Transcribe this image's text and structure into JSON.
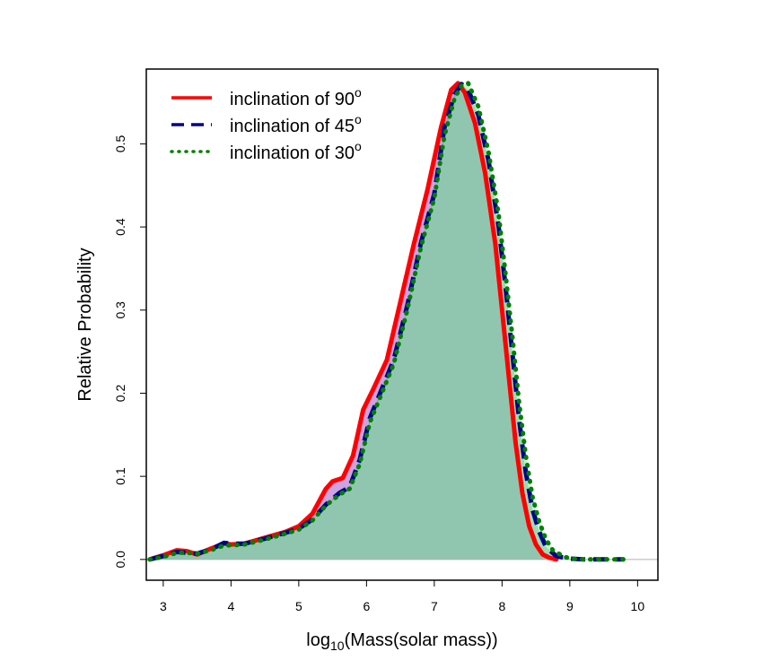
{
  "chart_data": {
    "type": "area",
    "xlabel": "log10(Mass(solar mass))",
    "xlabel_parts": {
      "main": "log",
      "sub": "10",
      "rest": "(Mass(solar mass))"
    },
    "ylabel": "Relative Probability",
    "xlim": [
      2.75,
      10.3
    ],
    "ylim": [
      -0.025,
      0.59
    ],
    "x_ticks": [
      3,
      4,
      5,
      6,
      7,
      8,
      9,
      10
    ],
    "y_ticks": [
      0.0,
      0.1,
      0.2,
      0.3,
      0.4,
      0.5
    ],
    "x_tick_labels": [
      "3",
      "4",
      "5",
      "6",
      "7",
      "8",
      "9",
      "10"
    ],
    "y_tick_labels": [
      "0.0",
      "0.1",
      "0.2",
      "0.3",
      "0.4",
      "0.5"
    ],
    "legend_placement": "top-left",
    "series": [
      {
        "name": "inclination of 90",
        "name_parts": {
          "text": "inclination of 90",
          "sup": "o"
        },
        "line_style": "solid",
        "color": "#ff0000",
        "fill": "#a855c8",
        "x": [
          2.8,
          3.0,
          3.2,
          3.35,
          3.5,
          3.7,
          3.9,
          4.0,
          4.2,
          4.5,
          4.8,
          5.0,
          5.2,
          5.4,
          5.5,
          5.65,
          5.8,
          5.95,
          6.1,
          6.3,
          6.5,
          6.7,
          6.9,
          7.1,
          7.25,
          7.35,
          7.45,
          7.6,
          7.75,
          7.9,
          8.0,
          8.1,
          8.2,
          8.3,
          8.4,
          8.5,
          8.6,
          8.7,
          8.8
        ],
        "y": [
          0.0,
          0.005,
          0.011,
          0.01,
          0.006,
          0.013,
          0.019,
          0.018,
          0.019,
          0.026,
          0.033,
          0.04,
          0.055,
          0.085,
          0.094,
          0.098,
          0.125,
          0.18,
          0.205,
          0.24,
          0.31,
          0.38,
          0.445,
          0.52,
          0.565,
          0.573,
          0.562,
          0.525,
          0.465,
          0.38,
          0.3,
          0.22,
          0.14,
          0.08,
          0.04,
          0.018,
          0.006,
          0.002,
          0.0
        ]
      },
      {
        "name": "inclination of 45",
        "name_parts": {
          "text": "inclination of 45",
          "sup": "o"
        },
        "line_style": "dashed",
        "color": "#00008b",
        "fill": "#5f9cc0",
        "x": [
          2.8,
          3.0,
          3.2,
          3.35,
          3.5,
          3.7,
          3.9,
          4.0,
          4.2,
          4.5,
          4.8,
          5.0,
          5.2,
          5.4,
          5.6,
          5.75,
          5.9,
          6.05,
          6.2,
          6.4,
          6.6,
          6.8,
          7.0,
          7.15,
          7.3,
          7.4,
          7.5,
          7.65,
          7.8,
          7.95,
          8.05,
          8.15,
          8.25,
          8.35,
          8.45,
          8.55,
          8.65,
          8.8,
          9.0,
          9.2,
          9.5,
          9.8
        ],
        "y": [
          0.0,
          0.004,
          0.009,
          0.008,
          0.007,
          0.012,
          0.02,
          0.019,
          0.019,
          0.025,
          0.032,
          0.037,
          0.048,
          0.066,
          0.08,
          0.087,
          0.12,
          0.17,
          0.2,
          0.24,
          0.305,
          0.38,
          0.44,
          0.52,
          0.56,
          0.572,
          0.565,
          0.535,
          0.48,
          0.4,
          0.33,
          0.25,
          0.17,
          0.105,
          0.06,
          0.033,
          0.015,
          0.004,
          0.001,
          0.0,
          0.0,
          0.0
        ]
      },
      {
        "name": "inclination of 30",
        "name_parts": {
          "text": "inclination of 30",
          "sup": "o"
        },
        "line_style": "dotted",
        "color": "#008000",
        "fill": "#90ee90",
        "x": [
          2.8,
          3.0,
          3.2,
          3.35,
          3.5,
          3.7,
          3.9,
          4.0,
          4.2,
          4.5,
          4.8,
          5.0,
          5.2,
          5.4,
          5.6,
          5.75,
          5.9,
          6.05,
          6.2,
          6.4,
          6.6,
          6.8,
          7.0,
          7.15,
          7.3,
          7.4,
          7.5,
          7.65,
          7.8,
          7.95,
          8.05,
          8.15,
          8.25,
          8.35,
          8.45,
          8.55,
          8.65,
          8.75,
          8.9,
          9.0,
          9.2,
          9.5,
          9.8
        ],
        "y": [
          0.0,
          0.003,
          0.008,
          0.008,
          0.007,
          0.011,
          0.017,
          0.017,
          0.018,
          0.024,
          0.031,
          0.036,
          0.047,
          0.065,
          0.078,
          0.085,
          0.115,
          0.165,
          0.195,
          0.235,
          0.3,
          0.375,
          0.435,
          0.51,
          0.555,
          0.57,
          0.573,
          0.545,
          0.49,
          0.415,
          0.345,
          0.27,
          0.19,
          0.125,
          0.075,
          0.045,
          0.024,
          0.011,
          0.004,
          0.001,
          0.0,
          0.0,
          0.0
        ]
      }
    ]
  }
}
